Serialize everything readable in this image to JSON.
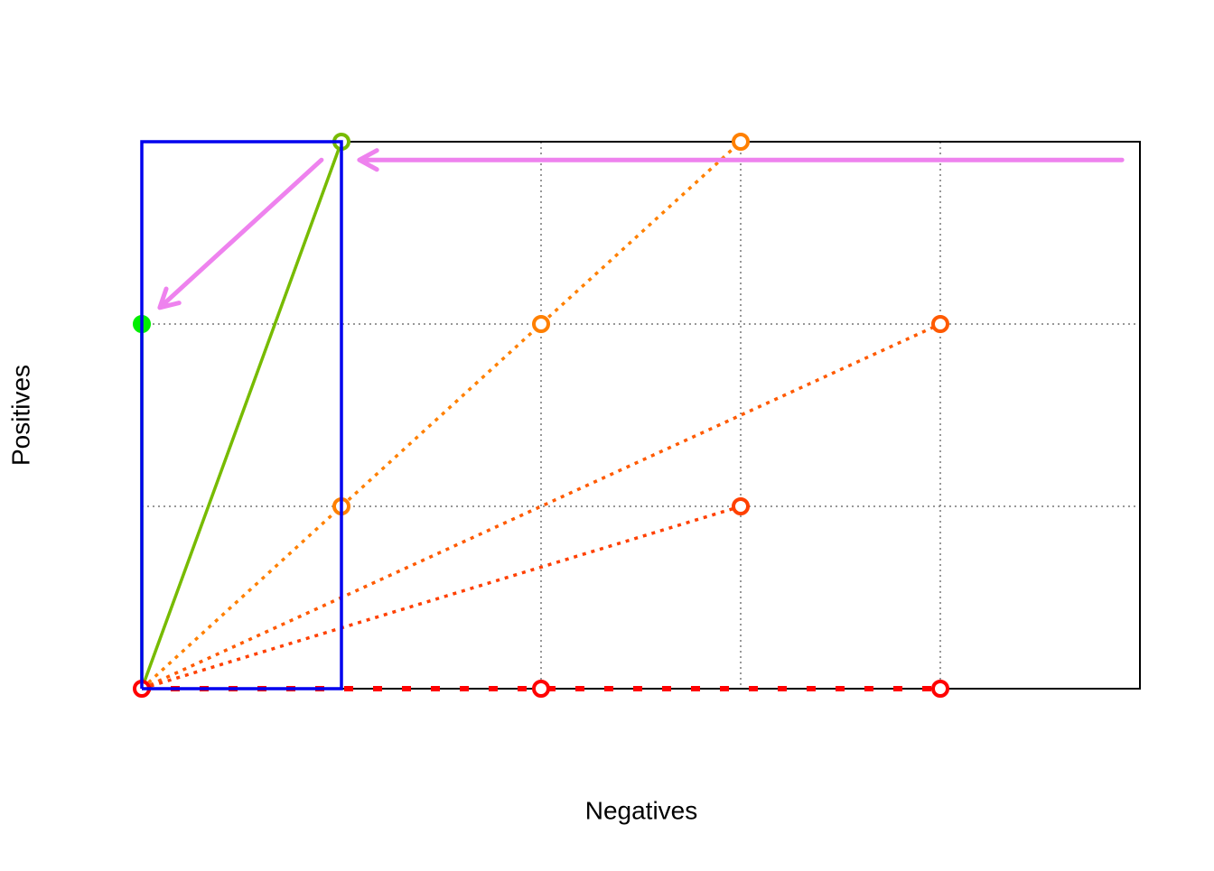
{
  "chart_data": {
    "type": "line",
    "x_label": "Negatives",
    "y_label": "Positives",
    "xlim": [
      0,
      5
    ],
    "ylim": [
      0,
      3
    ],
    "xticks": [
      1,
      2,
      3,
      4
    ],
    "yticks": [
      1,
      2
    ],
    "tick_labels": false,
    "grid": true,
    "series": [
      {
        "color": "#00ee00",
        "style": "solid",
        "marker": "filled",
        "x": [
          0,
          0
        ],
        "y": [
          0,
          2
        ]
      },
      {
        "color": "#77bb00",
        "style": "solid",
        "marker": "open",
        "x": [
          0,
          1
        ],
        "y": [
          0,
          3
        ]
      },
      {
        "color": "#ff8000",
        "style": "dotted",
        "marker": "open",
        "x": [
          0,
          1,
          2,
          3
        ],
        "y": [
          0,
          1,
          2,
          3
        ]
      },
      {
        "color": "#ff5a00",
        "style": "dotted",
        "marker": "open",
        "x": [
          0,
          4
        ],
        "y": [
          0,
          2
        ]
      },
      {
        "color": "#ff4000",
        "style": "dotted",
        "marker": "open",
        "x": [
          0,
          3
        ],
        "y": [
          0,
          1
        ]
      },
      {
        "color": "#ff0000",
        "style": "dashed",
        "marker": "open",
        "x": [
          0,
          2,
          4
        ],
        "y": [
          0,
          0,
          0
        ]
      },
      {
        "color": "#0000ee",
        "style": "solid",
        "marker": "none",
        "x": [
          0,
          1,
          1,
          0,
          0
        ],
        "y": [
          0,
          0,
          3,
          3,
          0
        ]
      }
    ],
    "arrows": [
      {
        "color": "#ee82ee",
        "x": [
          4.91,
          1.09
        ],
        "y": [
          2.9,
          2.9
        ]
      },
      {
        "color": "#ee82ee",
        "x": [
          0.9,
          0.09
        ],
        "y": [
          2.9,
          2.09
        ]
      }
    ]
  }
}
